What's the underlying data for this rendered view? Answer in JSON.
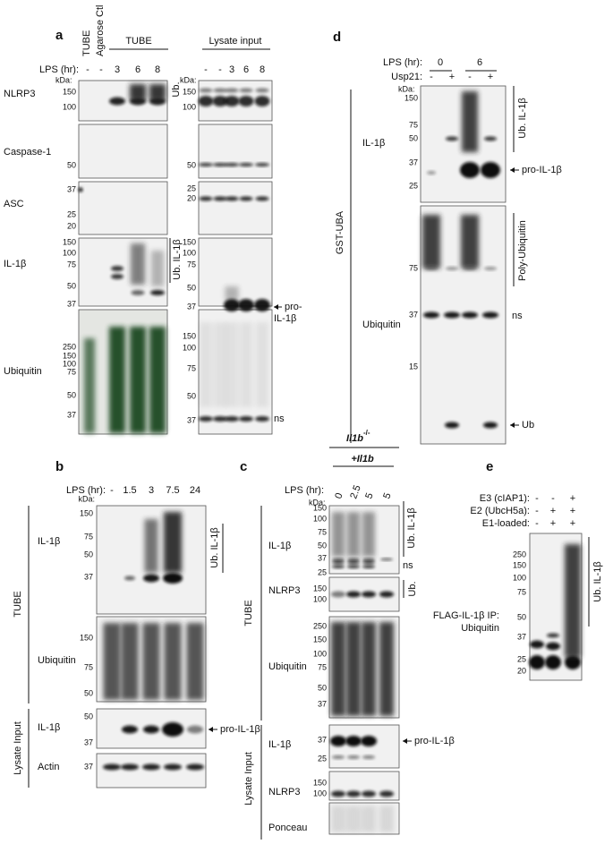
{
  "a": {
    "label": "a",
    "headers_rotated": [
      "TUBE",
      "Agarose Ctl"
    ],
    "header_tube": "TUBE",
    "header_lysate": "Lysate input",
    "lps_label": "LPS (hr):",
    "lanes_tube": [
      "-",
      "-",
      "3",
      "6",
      "8"
    ],
    "lanes_lysate": [
      "-",
      "-",
      "3",
      "6",
      "8"
    ],
    "kda_labels": [
      "kDa:",
      "kDa:"
    ],
    "rows": [
      {
        "label": "NLRP3",
        "markers_left": [
          150,
          100
        ],
        "markers_right": [
          150,
          100
        ]
      },
      {
        "label": "Caspase-1",
        "markers_left": [
          50
        ],
        "markers_right": [
          50
        ]
      },
      {
        "label": "ASC",
        "markers_left": [
          37,
          25,
          20
        ],
        "markers_right": [
          25,
          20
        ]
      },
      {
        "label": "IL-1β",
        "markers_left": [
          150,
          100,
          75,
          50,
          37
        ],
        "markers_right": [
          150,
          100,
          75,
          50,
          37
        ]
      },
      {
        "label": "Ubiquitin",
        "markers_left": [
          250,
          150,
          100,
          75,
          50,
          37
        ],
        "markers_right": [
          150,
          100,
          75,
          50,
          37
        ]
      }
    ],
    "ub_label": "Ub.",
    "ub_il1b_label": "Ub. IL-1β",
    "pro_il1b_label": [
      "pro-",
      "IL-1β"
    ],
    "ns_label": "ns"
  },
  "b": {
    "label": "b",
    "lps_label": "LPS (hr):",
    "lanes": [
      "-",
      "1.5",
      "3",
      "7.5",
      "24"
    ],
    "kda_label": "kDa:",
    "rows": [
      {
        "label": "IL-1β",
        "markers": [
          150,
          75,
          50,
          37
        ]
      },
      {
        "label": "Ubiquitin",
        "markers": [
          150,
          75,
          50
        ]
      },
      {
        "label": "IL-1β",
        "markers": [
          50,
          37
        ]
      },
      {
        "label": "Actin",
        "markers": [
          37
        ]
      }
    ],
    "groups": [
      "TUBE",
      "Lysate Input"
    ],
    "ub_il1b_label": "Ub. IL-1β",
    "pro_il1b_label": "pro-IL-1β"
  },
  "c": {
    "label": "c",
    "genotype": "Il1b",
    "genotype_sup": "-/-",
    "rescue": "+Il1b",
    "lps_label": "LPS (hr):",
    "lanes": [
      "0",
      "2.5",
      "5",
      "5"
    ],
    "kda_label": "kDa:",
    "rows": [
      {
        "label": "IL-1β",
        "markers": [
          150,
          100,
          75,
          50,
          37,
          25
        ]
      },
      {
        "label": "NLRP3",
        "markers": [
          150,
          100
        ]
      },
      {
        "label": "Ubiquitin",
        "markers": [
          250,
          150,
          100,
          75,
          50,
          37
        ]
      },
      {
        "label": "IL-1β",
        "markers": [
          37,
          25
        ]
      },
      {
        "label": "NLRP3",
        "markers": [
          150,
          100
        ]
      },
      {
        "label": "Ponceau",
        "markers": []
      }
    ],
    "groups": [
      "TUBE",
      "Lysate Input"
    ],
    "ub_il1b_label": "Ub. IL-1β",
    "ns_label": "ns",
    "ub_label": "Ub.",
    "pro_il1b_label": "pro-IL-1β"
  },
  "d": {
    "label": "d",
    "lps_label": "LPS (hr):",
    "lps_values": [
      "0",
      "6"
    ],
    "usp21_label": "Usp21:",
    "usp21_lanes": [
      "-",
      "+",
      "-",
      "+"
    ],
    "kda_label": "kDa:",
    "rows": [
      {
        "label": "IL-1β",
        "markers": [
          150,
          75,
          50,
          37,
          25
        ]
      },
      {
        "label": "Ubiquitin",
        "markers": [
          75,
          37,
          15
        ]
      }
    ],
    "group": "GST-UBA",
    "ub_il1b_label": "Ub. IL-1β",
    "pro_il1b_label": "pro-IL-1β",
    "poly_ub_label": "Poly-Ubiquitin",
    "ns_label": "ns",
    "ub_label": "Ub"
  },
  "e": {
    "label": "e",
    "conditions": [
      {
        "label": "E3 (cIAP1):",
        "lanes": [
          "-",
          "-",
          "+"
        ]
      },
      {
        "label": "E2 (UbcH5a):",
        "lanes": [
          "-",
          "+",
          "+"
        ]
      },
      {
        "label": "E1-loaded:",
        "lanes": [
          "-",
          "+",
          "+"
        ]
      }
    ],
    "markers": [
      250,
      150,
      100,
      75,
      50,
      37,
      25,
      20
    ],
    "ip_label": [
      "FLAG-IL-1β IP:",
      "Ubiquitin"
    ],
    "ub_il1b_label": "Ub. IL-1β"
  }
}
